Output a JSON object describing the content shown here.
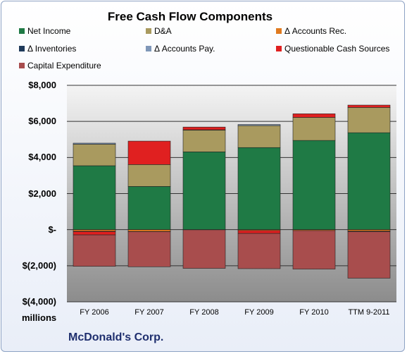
{
  "chart_data": {
    "type": "bar",
    "stacked": true,
    "title": "Free Cash Flow Components",
    "units_label": "millions",
    "company": "McDonald's Corp.",
    "categories": [
      "FY 2006",
      "FY 2007",
      "FY 2008",
      "FY 2009",
      "FY 2010",
      "TTM 9-2011"
    ],
    "ylim": [
      -4000,
      8000
    ],
    "yticks": [
      {
        "value": 8000,
        "label": "$8,000"
      },
      {
        "value": 6000,
        "label": "$6,000"
      },
      {
        "value": 4000,
        "label": "$4,000"
      },
      {
        "value": 2000,
        "label": "$2,000"
      },
      {
        "value": 0,
        "label": "$-"
      },
      {
        "value": -2000,
        "label": "$(2,000)"
      },
      {
        "value": -4000,
        "label": "$(4,000)"
      }
    ],
    "grid": true,
    "legend_position": "top",
    "series": [
      {
        "name": "Net Income",
        "color": "#1f7a45",
        "values": [
          3544,
          2395,
          4313,
          4551,
          4946,
          5374
        ]
      },
      {
        "name": "D&A",
        "color": "#a99a5f",
        "values": [
          1191,
          1214,
          1208,
          1217,
          1276,
          1400
        ]
      },
      {
        "name": "Δ Accounts Rec.",
        "color": "#e07a1f",
        "values": [
          -90,
          -100,
          16,
          -50,
          -50,
          -80
        ]
      },
      {
        "name": "Δ Inventories",
        "color": "#1f3a5a",
        "values": [
          -20,
          -10,
          -10,
          0,
          0,
          -30
        ]
      },
      {
        "name": "Δ Accounts Pay.",
        "color": "#7f97b8",
        "values": [
          60,
          0,
          0,
          60,
          0,
          0
        ]
      },
      {
        "name": "Questionable Cash Sources",
        "color": "#e02020",
        "values": [
          -180,
          1300,
          150,
          -160,
          200,
          130
        ]
      },
      {
        "name": "Capital Expenditure",
        "color": "#a84d4d",
        "values": [
          -1742,
          -1947,
          -2136,
          -1952,
          -2135,
          -2580
        ]
      }
    ]
  }
}
